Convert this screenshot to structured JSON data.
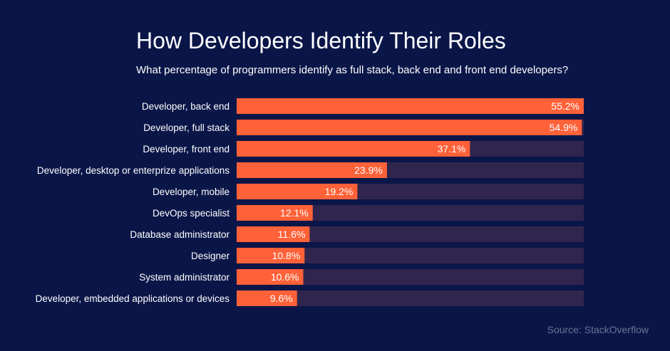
{
  "colors": {
    "background": "#0b1648",
    "bar": "#ff6138",
    "track": "#30254d",
    "text": "#ffffff",
    "source": "#6b7396"
  },
  "source": "Source: StackOverflow",
  "chart_data": {
    "type": "bar",
    "orientation": "horizontal",
    "title": "How Developers Identify Their Roles",
    "subtitle": "What percentage of programmers identify as full stack, back end and front end developers?",
    "categories": [
      "Developer, back end",
      "Developer, full stack",
      "Developer, front end",
      "Developer, desktop or enterprize applications",
      "Developer, mobile",
      "DevOps specialist",
      "Database administrator",
      "Designer",
      "System administrator",
      "Developer, embedded applications or devices"
    ],
    "values": [
      55.2,
      54.9,
      37.1,
      23.9,
      19.2,
      12.1,
      11.6,
      10.8,
      10.6,
      9.6
    ],
    "value_labels": [
      "55.2%",
      "54.9%",
      "37.1%",
      "23.9%",
      "19.2%",
      "12.1%",
      "11.6%",
      "10.8%",
      "10.6%",
      "9.6%"
    ],
    "xlim": [
      0,
      55.2
    ],
    "unit": "%",
    "grid": false,
    "legend": "none"
  }
}
